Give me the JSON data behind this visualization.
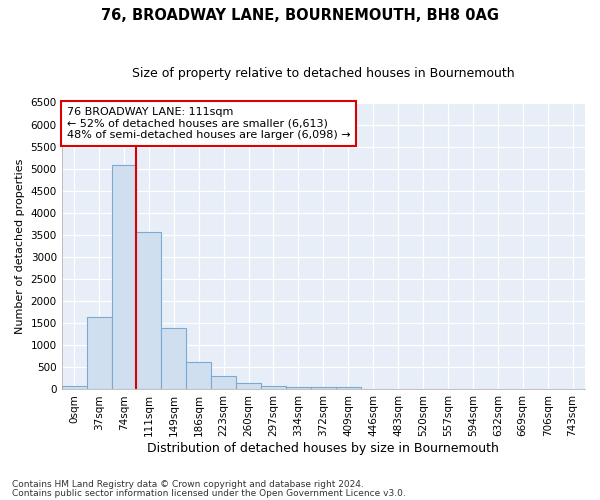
{
  "title": "76, BROADWAY LANE, BOURNEMOUTH, BH8 0AG",
  "subtitle": "Size of property relative to detached houses in Bournemouth",
  "xlabel": "Distribution of detached houses by size in Bournemouth",
  "ylabel": "Number of detached properties",
  "bin_labels": [
    "0sqm",
    "37sqm",
    "74sqm",
    "111sqm",
    "149sqm",
    "186sqm",
    "223sqm",
    "260sqm",
    "297sqm",
    "334sqm",
    "372sqm",
    "409sqm",
    "446sqm",
    "483sqm",
    "520sqm",
    "557sqm",
    "594sqm",
    "632sqm",
    "669sqm",
    "706sqm",
    "743sqm"
  ],
  "bar_heights": [
    75,
    1630,
    5080,
    3570,
    1400,
    620,
    300,
    140,
    85,
    55,
    45,
    45,
    20,
    10,
    10,
    5,
    5,
    5,
    0,
    0,
    0
  ],
  "bar_color": "#d0dff0",
  "bar_edgecolor": "#7aaad0",
  "vline_x": 2.5,
  "vline_color": "#dd0000",
  "annotation_text": "76 BROADWAY LANE: 111sqm\n← 52% of detached houses are smaller (6,613)\n48% of semi-detached houses are larger (6,098) →",
  "annotation_boxcolor": "white",
  "annotation_edgecolor": "#dd0000",
  "ylim": [
    0,
    6500
  ],
  "yticks": [
    0,
    500,
    1000,
    1500,
    2000,
    2500,
    3000,
    3500,
    4000,
    4500,
    5000,
    5500,
    6000,
    6500
  ],
  "footnote1": "Contains HM Land Registry data © Crown copyright and database right 2024.",
  "footnote2": "Contains public sector information licensed under the Open Government Licence v3.0.",
  "bg_color": "#ffffff",
  "plot_bg_color": "#e8eef8",
  "grid_color": "#ffffff",
  "title_fontsize": 10.5,
  "subtitle_fontsize": 9,
  "xlabel_fontsize": 9,
  "ylabel_fontsize": 8,
  "tick_fontsize": 7.5,
  "annotation_fontsize": 8,
  "footnote_fontsize": 6.5
}
